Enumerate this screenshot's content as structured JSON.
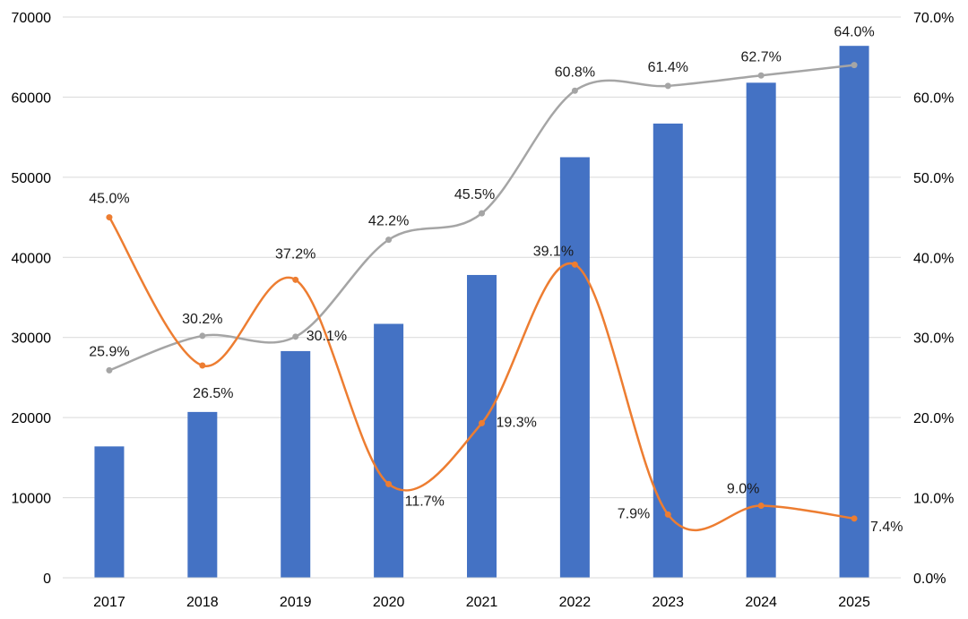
{
  "chart_data": {
    "type": "bar",
    "categories": [
      "2017",
      "2018",
      "2019",
      "2020",
      "2021",
      "2022",
      "2023",
      "2024",
      "2025"
    ],
    "series": [
      {
        "type": "bar",
        "axis": "left",
        "color": "#4472C4",
        "values": [
          16400,
          20700,
          28300,
          31700,
          37800,
          52500,
          56700,
          61800,
          66400
        ]
      },
      {
        "type": "line",
        "axis": "right",
        "color": "#A5A5A5",
        "values": [
          25.9,
          30.2,
          30.1,
          42.2,
          45.5,
          60.8,
          61.4,
          62.7,
          64.0
        ],
        "labels": [
          "25.9%",
          "30.2%",
          "30.1%",
          "42.2%",
          "45.5%",
          "60.8%",
          "61.4%",
          "62.7%",
          "64.0%"
        ]
      },
      {
        "type": "line",
        "axis": "right",
        "color": "#ED7D31",
        "values": [
          45.0,
          26.5,
          37.2,
          11.7,
          19.3,
          39.1,
          7.9,
          9.0,
          7.4
        ],
        "labels": [
          "45.0%",
          "26.5%",
          "37.2%",
          "11.7%",
          "19.3%",
          "39.1%",
          "7.9%",
          "9.0%",
          "7.4%"
        ]
      }
    ],
    "y_left": {
      "range": [
        0,
        70000
      ],
      "ticks": [
        "0",
        "10000",
        "20000",
        "30000",
        "40000",
        "50000",
        "60000",
        "70000"
      ]
    },
    "y_right": {
      "range": [
        0,
        70
      ],
      "ticks": [
        "0.0%",
        "10.0%",
        "20.0%",
        "30.0%",
        "40.0%",
        "50.0%",
        "60.0%",
        "70.0%"
      ]
    },
    "grid": true,
    "legend": "none"
  }
}
